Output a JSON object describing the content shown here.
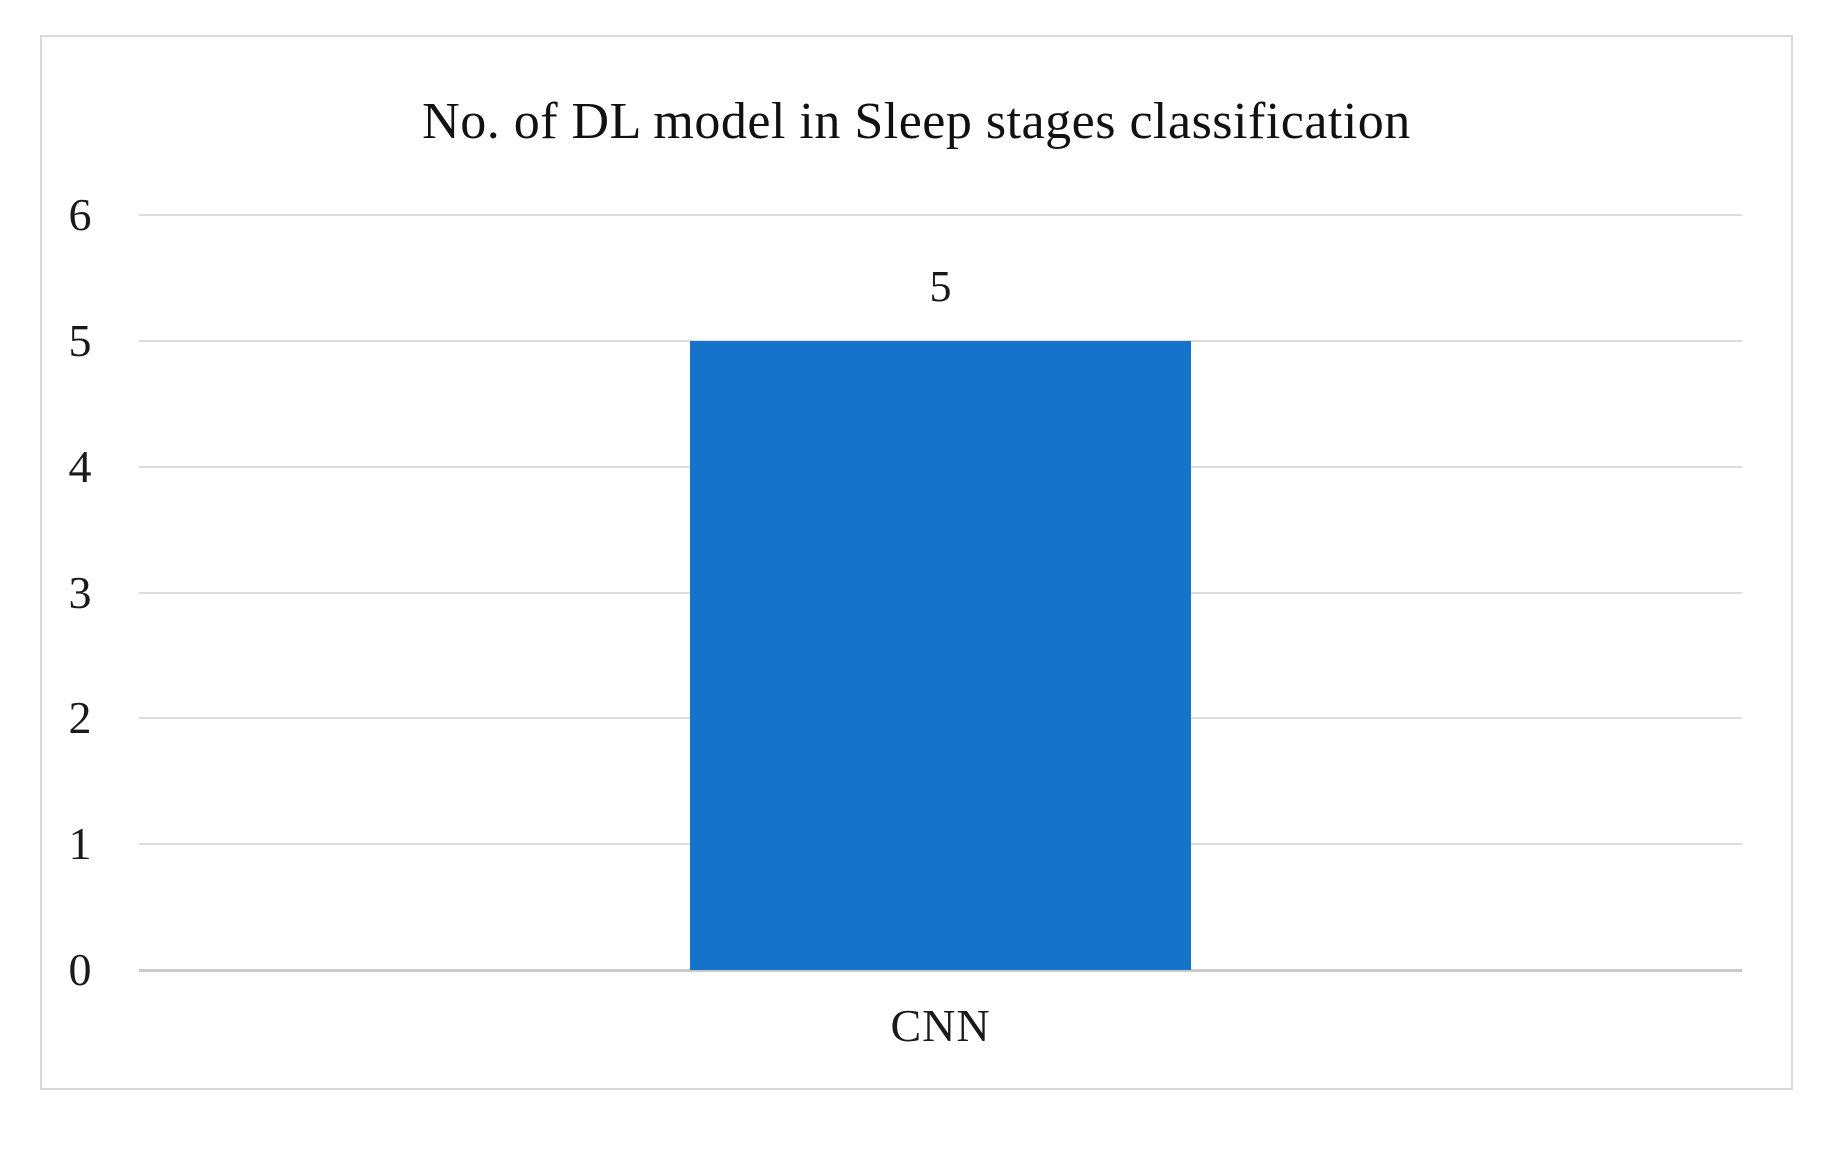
{
  "chart_data": {
    "type": "bar",
    "title": "No. of DL model in Sleep stages classification",
    "categories": [
      "CNN"
    ],
    "values": [
      5
    ],
    "data_labels": [
      "5"
    ],
    "xlabel": "",
    "ylabel": "",
    "ylim": [
      0,
      6
    ],
    "yticks": [
      0,
      1,
      2,
      3,
      4,
      5,
      6
    ],
    "grid": true,
    "legend_position": "none",
    "colors": {
      "bar": "#1573c9",
      "gridline": "#dcdcdc",
      "axis_line": "#c9c9c9",
      "frame_border": "#d9d9d9",
      "text": "#1a1a1a",
      "background": "#ffffff"
    }
  }
}
